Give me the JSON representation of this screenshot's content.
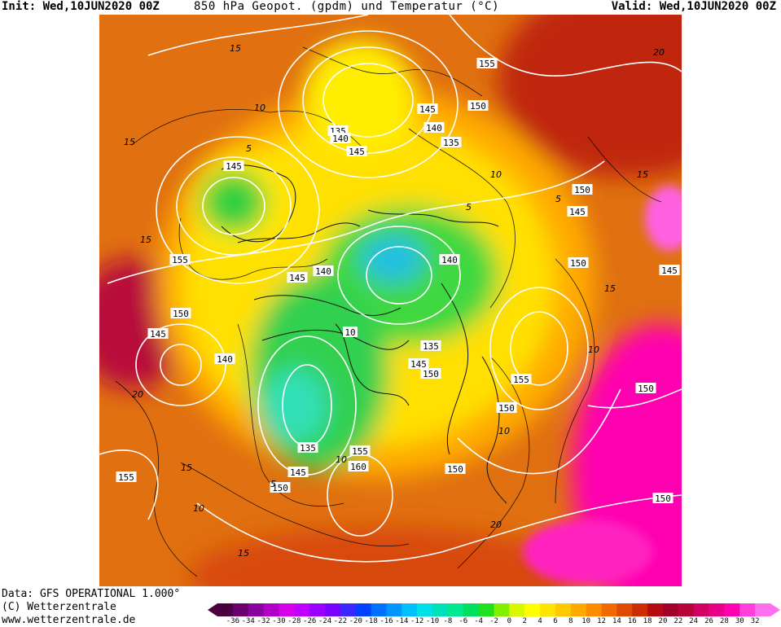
{
  "header": {
    "init": "Init: Wed,10JUN2020 00Z",
    "title": "850 hPa Geopot. (gpdm) und Temperatur (°C)",
    "valid": "Valid: Wed,10JUN2020 00Z"
  },
  "footer": {
    "data_source": "Data: GFS OPERATIONAL 1.000°",
    "copyright": "(C) Wetterzentrale",
    "url": "www.wetterzentrale.de"
  },
  "colorbar": {
    "tick_labels": [
      "-36",
      "-34",
      "-32",
      "-30",
      "-28",
      "-26",
      "-24",
      "-22",
      "-20",
      "-18",
      "-16",
      "-14",
      "-12",
      "-10",
      "-8",
      "-6",
      "-4",
      "-2",
      "0",
      "2",
      "4",
      "6",
      "8",
      "10",
      "12",
      "14",
      "16",
      "18",
      "20",
      "22",
      "24",
      "26",
      "28",
      "30",
      "32"
    ],
    "colors": [
      "#4a0040",
      "#6a0070",
      "#8a00a0",
      "#b000c8",
      "#d800e8",
      "#c000ff",
      "#9a00ff",
      "#7a00ff",
      "#3a28ff",
      "#0040ff",
      "#0070ff",
      "#0096ff",
      "#00c0ff",
      "#00e0e8",
      "#00e0b8",
      "#00e890",
      "#00e060",
      "#20e020",
      "#80f000",
      "#d8f800",
      "#ffff00",
      "#ffe400",
      "#ffc800",
      "#ffaa00",
      "#ff8c00",
      "#f06a00",
      "#e04a00",
      "#cc2c00",
      "#b40a10",
      "#a00028",
      "#b8003a",
      "#d00060",
      "#e80088",
      "#ff00b0",
      "#ff40d8",
      "#ff70f0"
    ]
  },
  "map": {
    "height_labels": [
      {
        "text": "155"
      },
      {
        "text": "150"
      },
      {
        "text": "145"
      },
      {
        "text": "140"
      },
      {
        "text": "135"
      },
      {
        "text": "140"
      },
      {
        "text": "145"
      },
      {
        "text": "135"
      },
      {
        "text": "145"
      },
      {
        "text": "150"
      },
      {
        "text": "145"
      },
      {
        "text": "155"
      },
      {
        "text": "140"
      },
      {
        "text": "145"
      },
      {
        "text": "140"
      },
      {
        "text": "150"
      },
      {
        "text": "145"
      },
      {
        "text": "150"
      },
      {
        "text": "145"
      },
      {
        "text": "140"
      },
      {
        "text": "10"
      },
      {
        "text": "135"
      },
      {
        "text": "145"
      },
      {
        "text": "150"
      },
      {
        "text": "155"
      },
      {
        "text": "150"
      },
      {
        "text": "150"
      },
      {
        "text": "135"
      },
      {
        "text": "155"
      },
      {
        "text": "160"
      },
      {
        "text": "145"
      },
      {
        "text": "150"
      },
      {
        "text": "150"
      },
      {
        "text": "155"
      },
      {
        "text": "150"
      }
    ],
    "temp_labels": [
      "15",
      "15",
      "10",
      "5",
      "15",
      "20",
      "15",
      "10",
      "5",
      "10",
      "20",
      "5",
      "10",
      "5",
      "15",
      "10",
      "15",
      "15",
      "10",
      "20"
    ]
  }
}
